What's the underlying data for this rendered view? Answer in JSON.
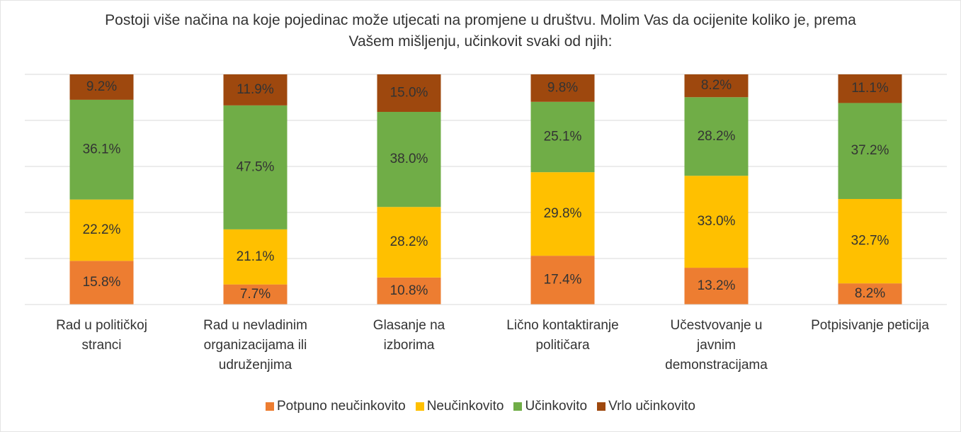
{
  "chart_data": {
    "type": "bar",
    "stacked": "percent",
    "title": "Postoji više načina na koje pojedinac može utjecati na promjene u društvu. Molim Vas da ocijenite koliko je, prema Vašem mišljenju, učinkovit svaki od njih:",
    "categories": [
      "Rad u političkoj stranci",
      "Rad u nevladinim organizacijama ili udruženjima",
      "Glasanje na izborima",
      "Lično kontaktiranje političara",
      "Učestvovanje u javnim demonstracijama",
      "Potpisivanje peticija"
    ],
    "series": [
      {
        "name": "Potpuno neučinkovito",
        "color": "#ed7d31",
        "values": [
          15.8,
          7.7,
          10.8,
          17.4,
          13.2,
          8.2
        ],
        "value_labels": [
          "15.8%",
          "7.7%",
          "10.8%",
          "17.4%",
          "13.2%",
          "8.2%"
        ]
      },
      {
        "name": "Neučinkovito",
        "color": "#ffc000",
        "values": [
          22.2,
          21.1,
          28.2,
          29.8,
          33.0,
          32.7
        ],
        "value_labels": [
          "22.2%",
          "21.1%",
          "28.2%",
          "29.8%",
          "33.0%",
          "32.7%"
        ]
      },
      {
        "name": "Učinkovito",
        "color": "#70ad47",
        "values": [
          36.1,
          47.5,
          38.0,
          25.1,
          28.2,
          37.2
        ],
        "value_labels": [
          "36.1%",
          "47.5%",
          "38.0%",
          "25.1%",
          "28.2%",
          "37.2%"
        ]
      },
      {
        "name": "Vrlo učinkovito",
        "color": "#9e480e",
        "values": [
          9.2,
          11.9,
          15.0,
          9.8,
          8.2,
          11.1
        ],
        "value_labels": [
          "9.2%",
          "11.9%",
          "15.0%",
          "9.8%",
          "8.2%",
          "11.1%"
        ]
      }
    ],
    "ylim": [
      0,
      100
    ],
    "yticks": [
      0,
      20,
      40,
      60,
      80,
      100
    ],
    "grid": true,
    "legend": "bottom"
  }
}
